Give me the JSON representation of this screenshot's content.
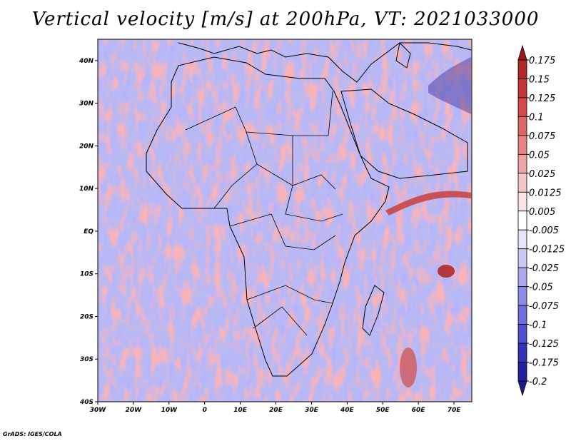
{
  "title": "Vertical velocity [m/s] at 200hPa, VT: 2021033000",
  "credit": "GrADS: IGES/COLA",
  "map": {
    "lon_range": [
      -30,
      75
    ],
    "lat_range": [
      -40,
      45
    ],
    "lon_ticks": [
      {
        "lon": -30,
        "label": "30W"
      },
      {
        "lon": -20,
        "label": "20W"
      },
      {
        "lon": -10,
        "label": "10W"
      },
      {
        "lon": 0,
        "label": "0"
      },
      {
        "lon": 10,
        "label": "10E"
      },
      {
        "lon": 20,
        "label": "20E"
      },
      {
        "lon": 30,
        "label": "30E"
      },
      {
        "lon": 40,
        "label": "40E"
      },
      {
        "lon": 50,
        "label": "50E"
      },
      {
        "lon": 60,
        "label": "60E"
      },
      {
        "lon": 70,
        "label": "70E"
      }
    ],
    "lat_ticks": [
      {
        "lat": 40,
        "label": "40N"
      },
      {
        "lat": 30,
        "label": "30N"
      },
      {
        "lat": 20,
        "label": "20N"
      },
      {
        "lat": 10,
        "label": "10N"
      },
      {
        "lat": 0,
        "label": "EQ"
      },
      {
        "lat": -10,
        "label": "10S"
      },
      {
        "lat": -20,
        "label": "20S"
      },
      {
        "lat": -30,
        "label": "30S"
      },
      {
        "lat": -40,
        "label": "40S"
      }
    ]
  },
  "colorbar": {
    "labels": [
      "0.175",
      "0.15",
      "0.125",
      "0.1",
      "0.075",
      "0.05",
      "0.025",
      "0.0125",
      "0.005",
      "-0.005",
      "-0.0125",
      "-0.025",
      "-0.05",
      "-0.075",
      "-0.1",
      "-0.125",
      "-0.175",
      "-0.2"
    ],
    "colors": [
      "#a11a1a",
      "#b22626",
      "#c33636",
      "#d34848",
      "#df6464",
      "#e88484",
      "#f0a4a4",
      "#f6c6c6",
      "#fbe4e4",
      "#ffffff",
      "#e4e4fb",
      "#c8c8f5",
      "#aaaaee",
      "#8c8ce6",
      "#6e6ede",
      "#5050d0",
      "#3232bb",
      "#2222a0",
      "#1a1a8a"
    ]
  }
}
